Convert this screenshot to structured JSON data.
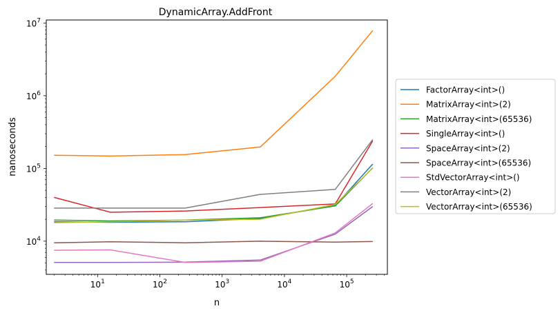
{
  "chart_data": {
    "type": "line",
    "title": "DynamicArray.AddFront",
    "xlabel": "n",
    "ylabel": "nanoseconds",
    "xscale": "log",
    "yscale": "log",
    "xlim": [
      1.5,
      450000
    ],
    "ylim": [
      3500,
      11000000
    ],
    "grid": false,
    "legend_position": "outside-right",
    "x": [
      2,
      16,
      256,
      4096,
      65536,
      262144
    ],
    "x_ticks": [
      {
        "value": 10,
        "base": "10",
        "exp": "1"
      },
      {
        "value": 100,
        "base": "10",
        "exp": "2"
      },
      {
        "value": 1000,
        "base": "10",
        "exp": "3"
      },
      {
        "value": 10000,
        "base": "10",
        "exp": "4"
      },
      {
        "value": 100000,
        "base": "10",
        "exp": "5"
      }
    ],
    "y_ticks": [
      {
        "value": 10000,
        "base": "10",
        "exp": "4"
      },
      {
        "value": 100000,
        "base": "10",
        "exp": "5"
      },
      {
        "value": 1000000,
        "base": "10",
        "exp": "6"
      },
      {
        "value": 10000000,
        "base": "10",
        "exp": "7"
      }
    ],
    "series": [
      {
        "name": "FactorArray<int>()",
        "color": "#1f77b4",
        "values": [
          18500,
          18200,
          18500,
          20500,
          31000,
          115000
        ]
      },
      {
        "name": "MatrixArray<int>(2)",
        "color": "#ff7f0e",
        "values": [
          152000,
          148000,
          155000,
          197000,
          1850000,
          7900000
        ]
      },
      {
        "name": "MatrixArray<int>(65536)",
        "color": "#2ca02c",
        "values": [
          19500,
          19000,
          19500,
          21000,
          30500,
          102000
        ]
      },
      {
        "name": "SingleArray<int>()",
        "color": "#d62728",
        "values": [
          40000,
          25000,
          26000,
          29000,
          32500,
          240000
        ]
      },
      {
        "name": "SpaceArray<int>(2)",
        "color": "#9467bd",
        "values": [
          5100,
          5100,
          5150,
          5500,
          12500,
          30000
        ]
      },
      {
        "name": "SpaceArray<int>(65536)",
        "color": "#8c564b",
        "values": [
          9500,
          9800,
          9500,
          10000,
          9700,
          9900
        ]
      },
      {
        "name": "StdVectorArray<int>()",
        "color": "#e377c2",
        "values": [
          7500,
          7600,
          5100,
          5300,
          13000,
          33000
        ]
      },
      {
        "name": "VectorArray<int>(2)",
        "color": "#7f7f7f",
        "values": [
          28500,
          28500,
          28500,
          44000,
          51500,
          250000
        ]
      },
      {
        "name": "VectorArray<int>(65536)",
        "color": "#bcbd22",
        "values": [
          18000,
          18500,
          19500,
          20000,
          32000,
          101000
        ]
      }
    ]
  }
}
